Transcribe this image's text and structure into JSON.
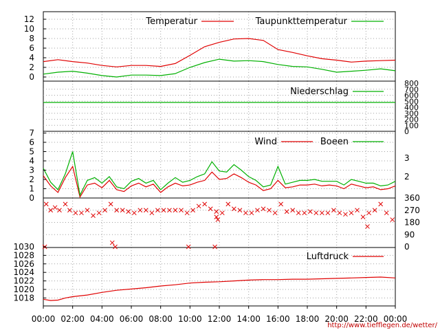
{
  "x_tick_labels": [
    "00:00",
    "02:00",
    "04:00",
    "06:00",
    "08:00",
    "10:00",
    "12:00",
    "14:00",
    "16:00",
    "18:00",
    "20:00",
    "22:00",
    "00:00"
  ],
  "footer_url": "http://www.tiefflegen.de/wetter/",
  "colors": {
    "red": "#e00000",
    "green": "#00b000",
    "grid": "#a0a0a0",
    "axis": "#000000"
  },
  "chart_data": [
    {
      "type": "line",
      "panel": "temperature",
      "ylim": [
        -1,
        13.5
      ],
      "y_ticks": [
        "12",
        "10",
        "8",
        "6",
        "4",
        "2",
        "0"
      ],
      "x": [
        0,
        1,
        2,
        3,
        4,
        5,
        6,
        7,
        8,
        9,
        10,
        11,
        12,
        13,
        14,
        15,
        16,
        17,
        18,
        19,
        20,
        21,
        22,
        23,
        24
      ],
      "series": [
        {
          "name": "Temperatur",
          "color": "#e00000",
          "values": [
            3.2,
            3.6,
            3.2,
            2.9,
            2.4,
            2.1,
            2.4,
            2.4,
            2.2,
            2.8,
            4.5,
            6.3,
            7.2,
            7.9,
            8.0,
            7.6,
            5.7,
            5.1,
            4.4,
            3.8,
            3.5,
            3.1,
            3.3,
            3.4,
            3.5
          ]
        },
        {
          "name": "Taupunkttemperatur",
          "color": "#00b000",
          "values": [
            0.6,
            1.0,
            1.2,
            0.8,
            0.3,
            0.0,
            0.4,
            0.4,
            0.3,
            0.7,
            2.0,
            3.0,
            3.7,
            3.3,
            3.4,
            3.2,
            2.6,
            2.2,
            2.1,
            1.6,
            1.0,
            1.2,
            1.4,
            1.7,
            1.3
          ]
        }
      ]
    },
    {
      "type": "line",
      "panel": "precipitation",
      "ylim": [
        0,
        800
      ],
      "y_ticks": [
        "800",
        "700",
        "600",
        "500",
        "400",
        "300",
        "200",
        "100",
        "0"
      ],
      "x": [
        0,
        24
      ],
      "series": [
        {
          "name": "Niederschlag",
          "color": "#00b000",
          "values": [
            480,
            480
          ]
        }
      ]
    },
    {
      "type": "line",
      "panel": "wind",
      "ylim": [
        0,
        7
      ],
      "y_ticks": [
        "7",
        "6",
        "5",
        "4",
        "3",
        "2",
        "1",
        "0"
      ],
      "y2_ticks": [
        "3",
        "2"
      ],
      "x": [
        0,
        0.5,
        1,
        1.5,
        2,
        2.5,
        3,
        3.5,
        4,
        4.5,
        5,
        5.5,
        6,
        6.5,
        7,
        7.5,
        8,
        8.5,
        9,
        9.5,
        10,
        10.5,
        11,
        11.5,
        12,
        12.5,
        13,
        13.5,
        14,
        14.5,
        15,
        15.5,
        16,
        16.5,
        17,
        17.5,
        18,
        18.5,
        19,
        19.5,
        20,
        20.5,
        21,
        21.5,
        22,
        22.5,
        23,
        23.5,
        24
      ],
      "series": [
        {
          "name": "Wind",
          "color": "#e00000",
          "values": [
            2.4,
            1.3,
            0.6,
            2.2,
            3.4,
            0.1,
            1.4,
            1.6,
            1.1,
            1.9,
            0.9,
            0.7,
            1.3,
            1.6,
            1.2,
            1.5,
            0.6,
            1.2,
            1.6,
            1.3,
            1.4,
            1.7,
            1.9,
            2.8,
            2.0,
            2.1,
            2.6,
            2.2,
            1.7,
            1.4,
            0.8,
            1.0,
            1.9,
            1.1,
            1.2,
            1.4,
            1.4,
            1.5,
            1.3,
            1.4,
            1.3,
            1.0,
            1.5,
            1.3,
            1.1,
            1.2,
            0.9,
            1.0,
            1.3
          ]
        },
        {
          "name": "Boeen",
          "color": "#00b000",
          "values": [
            3.2,
            1.7,
            0.9,
            2.6,
            5.0,
            0.3,
            1.9,
            2.2,
            1.6,
            2.3,
            1.2,
            1.0,
            1.8,
            2.1,
            1.6,
            1.9,
            0.9,
            1.6,
            2.2,
            1.7,
            1.9,
            2.3,
            2.6,
            3.9,
            2.9,
            2.8,
            3.6,
            3.0,
            2.3,
            1.9,
            1.2,
            1.4,
            3.4,
            1.5,
            1.7,
            1.9,
            1.9,
            2.0,
            1.8,
            1.8,
            1.8,
            1.4,
            2.0,
            1.8,
            1.6,
            1.6,
            1.3,
            1.4,
            1.8
          ]
        }
      ]
    },
    {
      "type": "scatter",
      "panel": "wind-direction",
      "ylim": [
        0,
        360
      ],
      "y2_ticks": [
        "360",
        "270",
        "180",
        "90",
        "0"
      ],
      "marker": "x",
      "color": "#e00000",
      "x": [
        0.2,
        0.5,
        0.8,
        1.1,
        1.5,
        1.8,
        2.2,
        2.6,
        3.0,
        3.4,
        3.8,
        4.2,
        4.6,
        5.0,
        5.4,
        5.8,
        6.2,
        6.6,
        7.0,
        7.4,
        7.8,
        8.2,
        8.6,
        9.0,
        9.4,
        9.8,
        10.2,
        10.6,
        11.0,
        11.4,
        11.8,
        12.2,
        12.6,
        13.0,
        13.4,
        13.8,
        14.2,
        14.6,
        15.0,
        15.4,
        15.8,
        16.2,
        16.6,
        17.0,
        17.4,
        17.8,
        18.2,
        18.6,
        19.0,
        19.4,
        19.8,
        20.2,
        20.6,
        21.0,
        21.4,
        21.8,
        22.2,
        22.6,
        23.0,
        23.4,
        23.8,
        0.1,
        4.9,
        9.9,
        11.7,
        4.7,
        11.9,
        11.8,
        22.1
      ],
      "y": [
        315,
        270,
        290,
        270,
        315,
        270,
        250,
        250,
        270,
        230,
        250,
        270,
        315,
        270,
        270,
        260,
        250,
        270,
        270,
        250,
        270,
        270,
        270,
        270,
        270,
        250,
        270,
        300,
        315,
        280,
        260,
        250,
        315,
        280,
        270,
        250,
        250,
        270,
        280,
        270,
        250,
        315,
        260,
        270,
        250,
        250,
        260,
        250,
        250,
        250,
        270,
        250,
        240,
        250,
        270,
        220,
        250,
        270,
        315,
        250,
        200,
        0,
        0,
        0,
        0,
        30,
        200,
        220,
        150
      ]
    },
    {
      "type": "line",
      "panel": "pressure",
      "ylim": [
        1016,
        1030
      ],
      "y_ticks": [
        "1030",
        "1028",
        "1026",
        "1024",
        "1022",
        "1020",
        "1018"
      ],
      "x": [
        0,
        0.5,
        1,
        1.5,
        2,
        3,
        4,
        5,
        6,
        7,
        8,
        9,
        10,
        11,
        12,
        13,
        14,
        15,
        16,
        17,
        18,
        19,
        20,
        21,
        22,
        23,
        24
      ],
      "series": [
        {
          "name": "Luftdruck",
          "color": "#e00000",
          "values": [
            1017.7,
            1017.4,
            1017.5,
            1018.0,
            1018.3,
            1018.7,
            1019.3,
            1019.8,
            1020.1,
            1020.4,
            1020.8,
            1021.1,
            1021.5,
            1021.7,
            1021.8,
            1022.0,
            1022.2,
            1022.3,
            1022.3,
            1022.4,
            1022.4,
            1022.5,
            1022.6,
            1022.7,
            1022.8,
            1022.9,
            1022.7
          ]
        }
      ]
    }
  ]
}
